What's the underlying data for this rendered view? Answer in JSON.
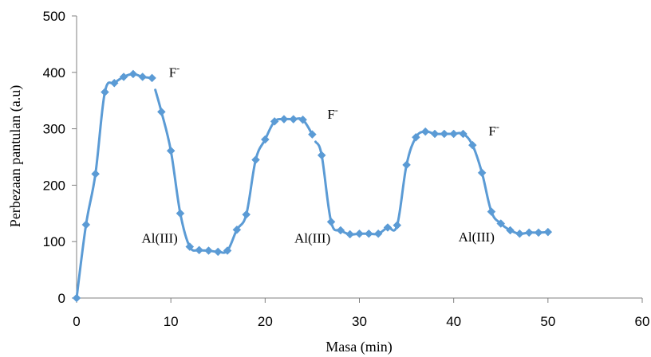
{
  "chart_data": {
    "type": "line",
    "title": "",
    "xlabel": "Masa (min)",
    "ylabel": "Perbezaan pantulan (a.u)",
    "xlim": [
      0,
      60
    ],
    "ylim": [
      0,
      500
    ],
    "xticks": [
      0,
      10,
      20,
      30,
      40,
      50,
      60
    ],
    "yticks": [
      0,
      100,
      200,
      300,
      400,
      500
    ],
    "grid": false,
    "legend": "none",
    "series": [
      {
        "color": "#5B9BD5",
        "marker": "diamond",
        "points": [
          [
            0,
            0
          ],
          [
            1,
            130
          ],
          [
            2,
            220
          ],
          [
            3,
            365
          ],
          [
            4,
            381
          ],
          [
            5,
            392
          ],
          [
            6,
            397
          ],
          [
            7,
            392
          ],
          [
            8,
            390
          ],
          [
            9,
            330
          ],
          [
            10,
            261
          ],
          [
            11,
            150
          ],
          [
            12,
            91
          ],
          [
            13,
            85
          ],
          [
            14,
            84
          ],
          [
            15,
            82
          ],
          [
            16,
            84
          ],
          [
            17,
            121
          ],
          [
            18,
            148
          ],
          [
            19,
            245
          ],
          [
            20,
            281
          ],
          [
            21,
            313
          ],
          [
            22,
            317
          ],
          [
            23,
            317
          ],
          [
            24,
            316
          ],
          [
            25,
            290
          ],
          [
            26,
            253
          ],
          [
            27,
            135
          ],
          [
            28,
            120
          ],
          [
            29,
            113
          ],
          [
            30,
            114
          ],
          [
            31,
            114
          ],
          [
            32,
            114
          ],
          [
            33,
            125
          ],
          [
            34,
            129
          ],
          [
            35,
            236
          ],
          [
            36,
            285
          ],
          [
            37,
            295
          ],
          [
            38,
            291
          ],
          [
            39,
            291
          ],
          [
            40,
            291
          ],
          [
            41,
            291
          ],
          [
            42,
            271
          ],
          [
            43,
            222
          ],
          [
            44,
            153
          ],
          [
            45,
            132
          ],
          [
            46,
            120
          ],
          [
            47,
            114
          ],
          [
            48,
            116
          ],
          [
            49,
            116
          ],
          [
            50,
            117
          ]
        ],
        "gaps_after_x": [
          8,
          25
        ]
      }
    ],
    "annotations": [
      {
        "text": "F",
        "sup": "-",
        "x": 9.8,
        "y": 392
      },
      {
        "text": "F",
        "sup": "-",
        "x": 26.6,
        "y": 318
      },
      {
        "text": "F",
        "sup": "-",
        "x": 43.7,
        "y": 288
      },
      {
        "text": "Al(III)",
        "x": 6.9,
        "y": 98
      },
      {
        "text": "Al(III)",
        "x": 23.1,
        "y": 98
      },
      {
        "text": "Al(III)",
        "x": 40.5,
        "y": 100
      }
    ]
  }
}
